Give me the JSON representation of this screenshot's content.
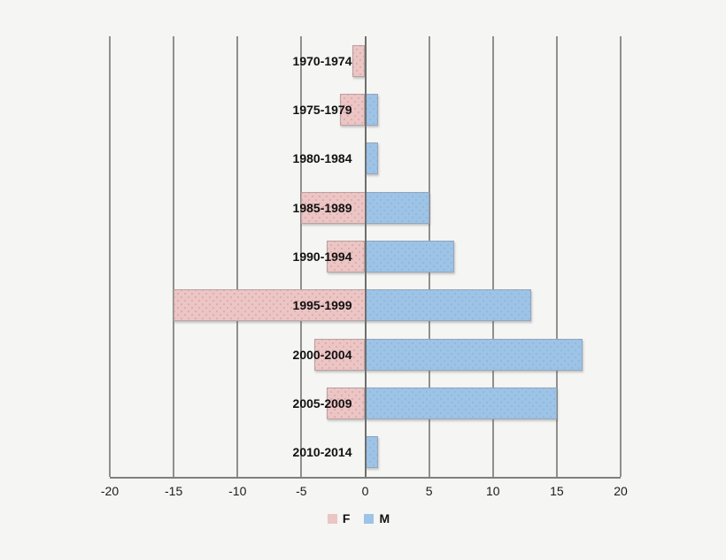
{
  "chart_data": {
    "type": "bar",
    "orientation": "horizontal",
    "title": "",
    "xlabel": "",
    "ylabel": "",
    "categories": [
      "1970-1974",
      "1975-1979",
      "1980-1984",
      "1985-1989",
      "1990-1994",
      "1995-1999",
      "2000-2004",
      "2005-2009",
      "2010-2014"
    ],
    "series": [
      {
        "name": "F",
        "color": "#ecc5c5",
        "values": [
          -1,
          -2,
          0,
          -5,
          -3,
          -15,
          -4,
          -3,
          0
        ]
      },
      {
        "name": "M",
        "color": "#9dc3e6",
        "values": [
          0,
          1,
          1,
          5,
          7,
          13,
          17,
          15,
          1
        ]
      }
    ],
    "xlim": [
      -20,
      20
    ],
    "x_ticks": [
      -20,
      -15,
      -10,
      -5,
      0,
      5,
      10,
      15,
      20
    ],
    "x_tick_labels": [
      "-20",
      "-15",
      "-10",
      "-5",
      "0",
      "5",
      "10",
      "15",
      "20"
    ],
    "grid": true,
    "legend_position": "bottom"
  },
  "colors": {
    "background": "#f5f5f3",
    "gridline": "#8f8f8f",
    "zero_line": "#6e6e6e",
    "axis_line": "#7f7f7f"
  }
}
